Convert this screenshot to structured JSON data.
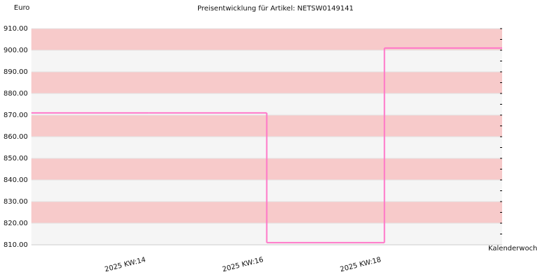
{
  "chart_data": {
    "type": "step",
    "title": "Preisentwicklung für Artikel: NETSW0149141",
    "y_label": "Euro",
    "x_label": "Kalenderwoche",
    "categories": [
      "2025 KW:14",
      "2025 KW:16",
      "2025 KW:18",
      null
    ],
    "values": [
      871,
      871,
      811,
      901
    ],
    "color": "#ff77c8",
    "ylim": [
      810,
      910
    ],
    "yticks": [
      {
        "value": 810,
        "label": "810.00"
      },
      {
        "value": 820,
        "label": "820.00"
      },
      {
        "value": 830,
        "label": "830.00"
      },
      {
        "value": 840,
        "label": "840.00"
      },
      {
        "value": 850,
        "label": "850.00"
      },
      {
        "value": 860,
        "label": "860.00"
      },
      {
        "value": 870,
        "label": "870.00"
      },
      {
        "value": 880,
        "label": "880.00"
      },
      {
        "value": 890,
        "label": "890.00"
      },
      {
        "value": 900,
        "label": "900.00"
      },
      {
        "value": 910,
        "label": "910.00"
      }
    ],
    "stripe_colors": [
      "#f7caca",
      "#f5f5f5"
    ]
  }
}
